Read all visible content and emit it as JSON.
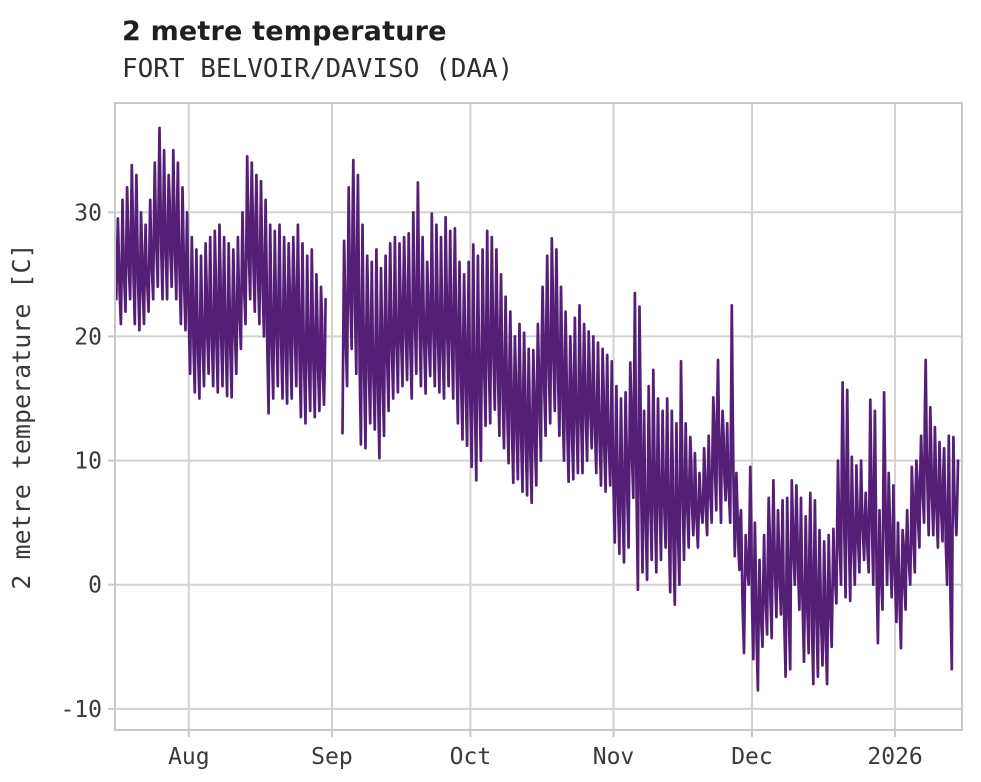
{
  "title": "2 metre temperature",
  "subtitle": "FORT BELVOIR/DAVISO (DAA)",
  "chart_data": {
    "type": "line",
    "title": "2 metre temperature",
    "subtitle": "FORT BELVOIR/DAVISO (DAA)",
    "xlabel": "",
    "ylabel": "2 metre temperature [C]",
    "units": "C",
    "legend": "none",
    "grid": "on",
    "line_color": "#551f78",
    "grid_color": "#d2d2d2",
    "spine_color": "#c9c9c9",
    "tick_label_color": "#3a3a3a",
    "ylim": [
      -11.7,
      38.8
    ],
    "yticks": [
      -10,
      0,
      10,
      20,
      30
    ],
    "xlim_days": [
      0,
      183.5
    ],
    "xticks": [
      {
        "day": 16,
        "label": "Aug"
      },
      {
        "day": 47,
        "label": "Sep"
      },
      {
        "day": 77,
        "label": "Oct"
      },
      {
        "day": 108,
        "label": "Nov"
      },
      {
        "day": 138,
        "label": "Dec"
      },
      {
        "day": 169,
        "label": "2026"
      }
    ],
    "series_note": "daily [min,max] temperature in C, day 0 = start of plotted record (~mid-July); null = data gap around Sep 1",
    "daily_min_max": [
      [
        23,
        29.5
      ],
      [
        21,
        31
      ],
      [
        22,
        32
      ],
      [
        23,
        33.8
      ],
      [
        21,
        33
      ],
      [
        20.5,
        30
      ],
      [
        21,
        29
      ],
      [
        22,
        31
      ],
      [
        23,
        34
      ],
      [
        24,
        36.8
      ],
      [
        23,
        35
      ],
      [
        23,
        33
      ],
      [
        24,
        35
      ],
      [
        23,
        34
      ],
      [
        21,
        32
      ],
      [
        20.5,
        30
      ],
      [
        17,
        28
      ],
      [
        15.5,
        27
      ],
      [
        15,
        26.5
      ],
      [
        16,
        27.5
      ],
      [
        17,
        28
      ],
      [
        16,
        28.5
      ],
      [
        15.5,
        29
      ],
      [
        16,
        28
      ],
      [
        15.2,
        27.5
      ],
      [
        15.1,
        27
      ],
      [
        17,
        28
      ],
      [
        19,
        30
      ],
      [
        21,
        34.5
      ],
      [
        23,
        34
      ],
      [
        22,
        33
      ],
      [
        21,
        32.5
      ],
      [
        20,
        31
      ],
      [
        13.8,
        29
      ],
      [
        15,
        28.5
      ],
      [
        16,
        29
      ],
      [
        15,
        28
      ],
      [
        14.6,
        27.5
      ],
      [
        15,
        28
      ],
      [
        16,
        29
      ],
      [
        13.5,
        27.5
      ],
      [
        13,
        26.5
      ],
      [
        14,
        27
      ],
      [
        13.5,
        25
      ],
      [
        14,
        24
      ],
      [
        14.5,
        23
      ],
      null,
      null,
      null,
      [
        12.2,
        27.7
      ],
      [
        16,
        32
      ],
      [
        19,
        34.2
      ],
      [
        17,
        33
      ],
      [
        11.3,
        29
      ],
      [
        11,
        26.5
      ],
      [
        13,
        26
      ],
      [
        12.5,
        27
      ],
      [
        10.2,
        25.5
      ],
      [
        12,
        26.5
      ],
      [
        14,
        27.5
      ],
      [
        15,
        28
      ],
      [
        15.5,
        27.5
      ],
      [
        16,
        28
      ],
      [
        16.5,
        28.3
      ],
      [
        15,
        30
      ],
      [
        17,
        32.4
      ],
      [
        16,
        28
      ],
      [
        15.4,
        26
      ],
      [
        16.8,
        29.9
      ],
      [
        16,
        29
      ],
      [
        15.5,
        28
      ],
      [
        15,
        29.6
      ],
      [
        16,
        28.5
      ],
      [
        15,
        28.7
      ],
      [
        13,
        26
      ],
      [
        11.7,
        25
      ],
      [
        11.2,
        26
      ],
      [
        9.5,
        27.4
      ],
      [
        8.4,
        26.5
      ],
      [
        10,
        27
      ],
      [
        12.8,
        28.5
      ],
      [
        13,
        28
      ],
      [
        14.1,
        27
      ],
      [
        12,
        25
      ],
      [
        11,
        23.2
      ],
      [
        9.8,
        22
      ],
      [
        8.2,
        20
      ],
      [
        8.5,
        21
      ],
      [
        7.5,
        20.3
      ],
      [
        7.2,
        19
      ],
      [
        6.6,
        18.9
      ],
      [
        8,
        21
      ],
      [
        10,
        24
      ],
      [
        12,
        26.5
      ],
      [
        13,
        27.9
      ],
      [
        14,
        27
      ],
      [
        12,
        24
      ],
      [
        10,
        22
      ],
      [
        8.3,
        20
      ],
      [
        8.5,
        21.5
      ],
      [
        9,
        22.5
      ],
      [
        9,
        21
      ],
      [
        10,
        20.4
      ],
      [
        11,
        20
      ],
      [
        9,
        19.5
      ],
      [
        8,
        19
      ],
      [
        7.5,
        18.5
      ],
      [
        8,
        18
      ],
      [
        3.4,
        16
      ],
      [
        2.5,
        15
      ],
      [
        1.8,
        15.5
      ],
      [
        3,
        17.9
      ],
      [
        7,
        23.5
      ],
      [
        -0.4,
        22.4
      ],
      [
        1,
        14
      ],
      [
        0.4,
        16
      ],
      [
        2,
        17.3
      ],
      [
        1,
        15
      ],
      [
        2,
        14
      ],
      [
        3,
        15
      ],
      [
        -0.6,
        14
      ],
      [
        -1.6,
        13
      ],
      [
        0,
        18
      ],
      [
        2,
        13
      ],
      [
        3,
        11.9
      ],
      [
        4,
        10.6
      ],
      [
        3,
        9
      ],
      [
        5,
        11
      ],
      [
        4,
        12
      ],
      [
        5,
        15.1
      ],
      [
        6,
        18.1
      ],
      [
        5,
        14
      ],
      [
        6.8,
        13
      ],
      [
        5,
        22.5
      ],
      [
        2.3,
        9
      ],
      [
        1.2,
        6
      ],
      [
        -5.5,
        4
      ],
      [
        0,
        9.5
      ],
      [
        -6,
        5
      ],
      [
        -8.5,
        2
      ],
      [
        -5,
        4
      ],
      [
        -4,
        7
      ],
      [
        -4.3,
        8.4
      ],
      [
        -2.6,
        6
      ],
      [
        -2.4,
        6.8
      ],
      [
        -7.4,
        7
      ],
      [
        -6.8,
        8.4
      ],
      [
        0,
        8
      ],
      [
        -2,
        7
      ],
      [
        -6.2,
        5.5
      ],
      [
        -5.5,
        7.4
      ],
      [
        -8,
        6.8
      ],
      [
        -7.4,
        4.4
      ],
      [
        -6.5,
        3.5
      ],
      [
        -8,
        4
      ],
      [
        -5,
        4.5
      ],
      [
        -1.5,
        10
      ],
      [
        0,
        16.3
      ],
      [
        -1,
        15.7
      ],
      [
        -1.3,
        10.3
      ],
      [
        0,
        9.6
      ],
      [
        1,
        10
      ],
      [
        2,
        7.4
      ],
      [
        1,
        14.9
      ],
      [
        0,
        14
      ],
      [
        -4.7,
        6
      ],
      [
        -2,
        15.5
      ],
      [
        0,
        9
      ],
      [
        -1,
        8
      ],
      [
        -3,
        5
      ],
      [
        -5.1,
        4.4
      ],
      [
        -2,
        6
      ],
      [
        0,
        9.5
      ],
      [
        1,
        10
      ],
      [
        3,
        12
      ],
      [
        5,
        18.1
      ],
      [
        4,
        14.3
      ],
      [
        4,
        12.7
      ],
      [
        3,
        11.5
      ],
      [
        3.5,
        11
      ],
      [
        0,
        12
      ],
      [
        -6.8,
        11.9
      ],
      [
        4,
        10
      ]
    ]
  }
}
